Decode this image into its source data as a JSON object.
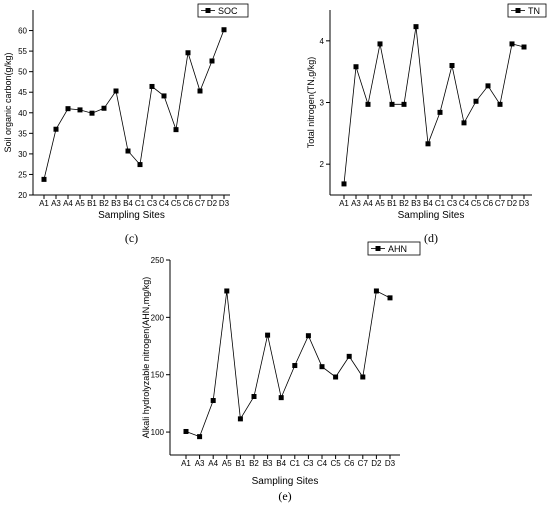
{
  "chart_data": [
    {
      "type": "line",
      "panel_label": "(c)",
      "xlabel": "Sampling Sites",
      "ylabel": "Soil organic carbon(g/kg)",
      "legend": "SOC",
      "legend_position": "top-right",
      "ylim": [
        20,
        65
      ],
      "yticks": [
        20,
        25,
        30,
        35,
        40,
        45,
        50,
        55,
        60
      ],
      "categories": [
        "A1",
        "A3",
        "A4",
        "A5",
        "B1",
        "B2",
        "B3",
        "B4",
        "C1",
        "C3",
        "C4",
        "C5",
        "C6",
        "C7",
        "D2",
        "D3"
      ],
      "series": [
        {
          "name": "SOC",
          "values": [
            23.8,
            36.0,
            41.0,
            40.7,
            39.9,
            41.1,
            45.3,
            30.7,
            27.4,
            46.4,
            44.1,
            35.9,
            54.6,
            45.3,
            52.6,
            60.2
          ]
        }
      ]
    },
    {
      "type": "line",
      "panel_label": "(d)",
      "xlabel": "Sampling Sites",
      "ylabel": "Total nitrogen(TN,g/kg)",
      "legend": "TN",
      "legend_position": "top-right",
      "ylim": [
        1.5,
        4.5
      ],
      "yticks": [
        2,
        3,
        4
      ],
      "categories": [
        "A1",
        "A3",
        "A4",
        "A5",
        "B1",
        "B2",
        "B3",
        "B4",
        "C1",
        "C3",
        "C4",
        "C5",
        "C6",
        "C7",
        "D2",
        "D3"
      ],
      "series": [
        {
          "name": "TN",
          "values": [
            1.68,
            3.58,
            2.97,
            3.95,
            2.97,
            2.97,
            4.23,
            2.33,
            2.84,
            3.6,
            2.67,
            3.02,
            3.27,
            2.97,
            3.95,
            3.9
          ]
        }
      ]
    },
    {
      "type": "line",
      "panel_label": "(e)",
      "xlabel": "Sampling Sites",
      "ylabel": "Alkali hydrolyzable nitrogen(AHN,mg/kg)",
      "legend": "AHN",
      "legend_position": "top-right",
      "ylim": [
        80,
        250
      ],
      "yticks": [
        100,
        150,
        200,
        250
      ],
      "categories": [
        "A1",
        "A3",
        "A4",
        "A5",
        "B1",
        "B2",
        "B3",
        "B4",
        "C1",
        "C3",
        "C4",
        "C5",
        "C6",
        "C7",
        "D2",
        "D3"
      ],
      "series": [
        {
          "name": "AHN",
          "values": [
            100.5,
            96.0,
            127.5,
            223.0,
            111.5,
            131.0,
            184.5,
            130.0,
            158.0,
            184.0,
            157.0,
            148.0,
            166.0,
            148.0,
            223.0,
            217.0
          ]
        }
      ]
    }
  ]
}
